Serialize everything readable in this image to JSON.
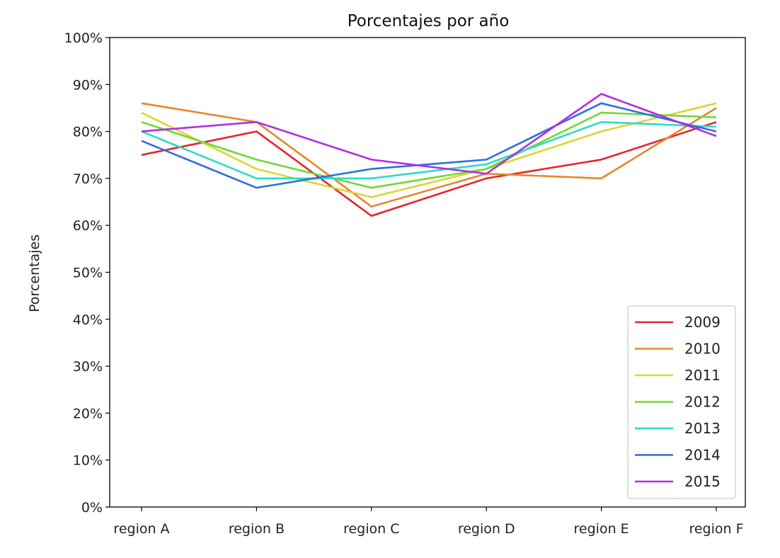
{
  "chart_data": {
    "type": "line",
    "title": "Porcentajes por año",
    "xlabel": "",
    "ylabel": "Porcentajes",
    "categories": [
      "region A",
      "region B",
      "region C",
      "region D",
      "region E",
      "region F"
    ],
    "ylim": [
      0,
      100
    ],
    "yticks": [
      "0%",
      "10%",
      "20%",
      "30%",
      "40%",
      "50%",
      "60%",
      "70%",
      "80%",
      "90%",
      "100%"
    ],
    "grid": false,
    "legend_position": "lower-right",
    "series": [
      {
        "name": "2009",
        "color": "#e8242a",
        "values": [
          75,
          80,
          62,
          70,
          74,
          82
        ]
      },
      {
        "name": "2010",
        "color": "#e8862a",
        "values": [
          86,
          82,
          64,
          71,
          70,
          85
        ]
      },
      {
        "name": "2011",
        "color": "#dcd533",
        "values": [
          84,
          72,
          66,
          72,
          80,
          86
        ]
      },
      {
        "name": "2012",
        "color": "#6fd935",
        "values": [
          82,
          74,
          68,
          72,
          84,
          83
        ]
      },
      {
        "name": "2013",
        "color": "#2bdcc9",
        "values": [
          80,
          70,
          70,
          73,
          82,
          81
        ]
      },
      {
        "name": "2014",
        "color": "#2d6fe0",
        "values": [
          78,
          68,
          72,
          74,
          86,
          80
        ]
      },
      {
        "name": "2015",
        "color": "#b12ee0",
        "values": [
          80,
          82,
          74,
          71,
          88,
          79
        ]
      }
    ]
  }
}
